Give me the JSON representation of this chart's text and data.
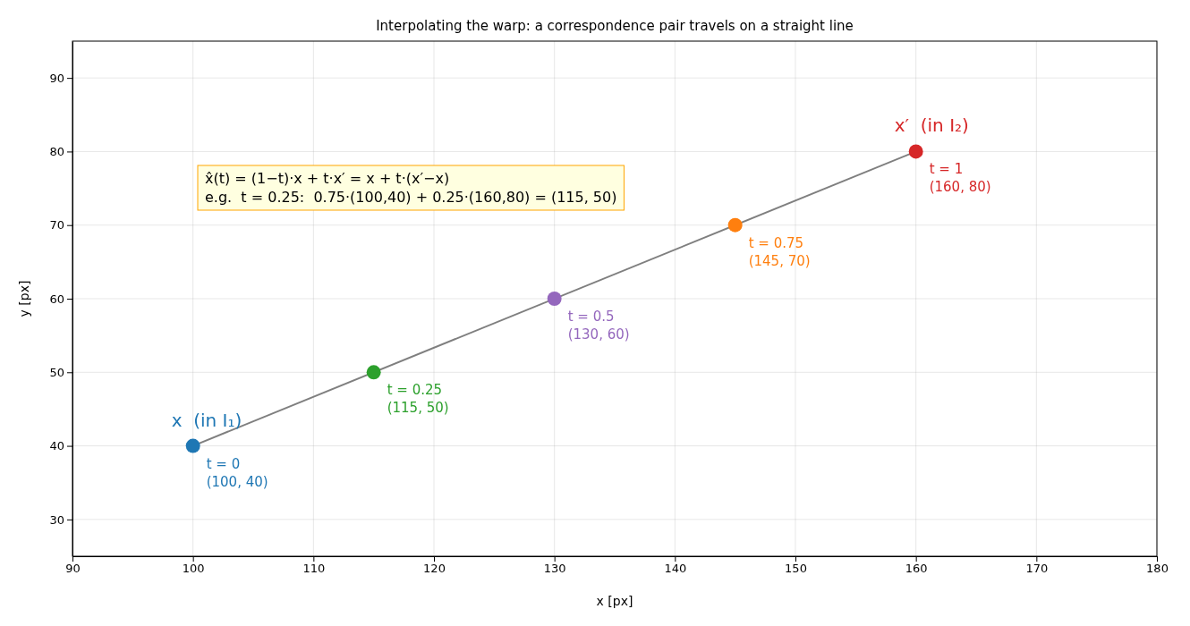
{
  "chart_data": {
    "type": "line",
    "title": "Interpolating the warp: a correspondence pair travels on a straight line",
    "xlabel": "x [px]",
    "ylabel": "y [px]",
    "xlim": [
      90,
      180
    ],
    "ylim": [
      25,
      95
    ],
    "xticks": [
      90,
      100,
      110,
      120,
      130,
      140,
      150,
      160,
      170,
      180
    ],
    "yticks": [
      30,
      40,
      50,
      60,
      70,
      80,
      90
    ],
    "grid": true,
    "series": [
      {
        "color": "#7f7f7f",
        "x": [
          100,
          160
        ],
        "values": [
          40,
          80
        ],
        "marker": "none"
      },
      {
        "type": "scatter",
        "x": [
          100,
          115,
          130,
          145,
          160
        ],
        "values": [
          40,
          50,
          60,
          70,
          80
        ],
        "colors": [
          "#1f77b4",
          "#2ca02c",
          "#9467bd",
          "#ff7f0e",
          "#d62728"
        ],
        "marker": "circle"
      }
    ],
    "annotations": [
      "x̂(t) = (1−t)·x + t·x′ = x + t·(x′−x)\ne.g.  t = 0.25:  0.75·(100,40) + 0.25·(160,80) = (115, 50)",
      {
        "text": "x  (in I₁)",
        "x": 100,
        "y": 40
      },
      {
        "text": "x′  (in I₂)",
        "x": 160,
        "y": 80
      },
      {
        "text": "t = 0\n(100, 40)",
        "x": 100,
        "y": 40
      },
      {
        "text": "t = 0.25\n(115, 50)",
        "x": 115,
        "y": 50
      },
      {
        "text": "t = 0.5\n(130, 60)",
        "x": 130,
        "y": 60
      },
      {
        "text": "t = 0.75\n(145, 70)",
        "x": 145,
        "y": 70
      },
      {
        "text": "t = 1\n(160, 80)",
        "x": 160,
        "y": 80
      }
    ]
  }
}
